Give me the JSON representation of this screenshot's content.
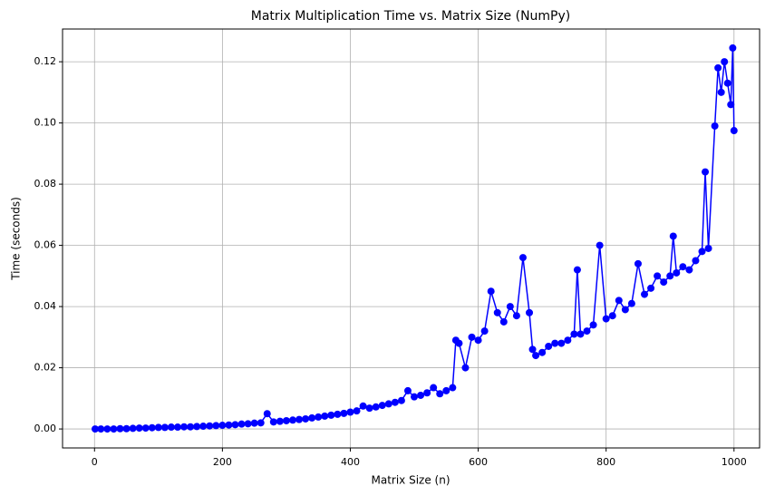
{
  "chart_data": {
    "type": "line",
    "title": "Matrix Multiplication Time vs. Matrix Size (NumPy)",
    "x_label": "Matrix Size (n)",
    "y_label": "Time (seconds)",
    "grid": true,
    "x": [
      1,
      10,
      20,
      30,
      40,
      50,
      60,
      70,
      80,
      90,
      100,
      110,
      120,
      130,
      140,
      150,
      160,
      170,
      180,
      190,
      200,
      210,
      220,
      230,
      240,
      250,
      260,
      270,
      280,
      290,
      300,
      310,
      320,
      330,
      340,
      350,
      360,
      370,
      380,
      390,
      400,
      410,
      420,
      430,
      440,
      450,
      460,
      470,
      480,
      490,
      500,
      510,
      520,
      530,
      540,
      550,
      560,
      565,
      570,
      580,
      590,
      600,
      610,
      620,
      630,
      640,
      650,
      660,
      670,
      680,
      685,
      690,
      700,
      710,
      720,
      730,
      740,
      750,
      755,
      760,
      770,
      780,
      790,
      800,
      810,
      820,
      830,
      840,
      850,
      860,
      870,
      880,
      890,
      900,
      905,
      910,
      920,
      930,
      940,
      950,
      955,
      960,
      970,
      975,
      980,
      985,
      990,
      995,
      998,
      1000
    ],
    "series": [
      {
        "name": "Time",
        "color": "#0000ff",
        "values": [
          0,
          0,
          0,
          0,
          0.0001,
          0.0001,
          0.0002,
          0.0003,
          0.0003,
          0.0004,
          0.0005,
          0.0005,
          0.0006,
          0.0006,
          0.0007,
          0.0007,
          0.0008,
          0.0009,
          0.001,
          0.0011,
          0.0012,
          0.0013,
          0.0014,
          0.0016,
          0.0017,
          0.0019,
          0.002,
          0.005,
          0.0023,
          0.0025,
          0.0027,
          0.0029,
          0.0031,
          0.0033,
          0.0036,
          0.0039,
          0.0042,
          0.0045,
          0.0048,
          0.0051,
          0.0055,
          0.0059,
          0.0075,
          0.0068,
          0.0072,
          0.0077,
          0.0082,
          0.0087,
          0.0093,
          0.0125,
          0.0105,
          0.011,
          0.0118,
          0.0135,
          0.0115,
          0.0125,
          0.0135,
          0.029,
          0.028,
          0.02,
          0.03,
          0.029,
          0.032,
          0.045,
          0.038,
          0.035,
          0.04,
          0.037,
          0.056,
          0.038,
          0.026,
          0.024,
          0.025,
          0.027,
          0.028,
          0.028,
          0.029,
          0.031,
          0.052,
          0.031,
          0.032,
          0.034,
          0.06,
          0.036,
          0.037,
          0.042,
          0.039,
          0.041,
          0.054,
          0.044,
          0.046,
          0.05,
          0.048,
          0.05,
          0.063,
          0.051,
          0.053,
          0.052,
          0.055,
          0.058,
          0.084,
          0.059,
          0.099,
          0.118,
          0.11,
          0.12,
          0.113,
          0.106,
          0.1245,
          0.0975
        ]
      }
    ],
    "xlim": [
      -50,
      1040
    ],
    "ylim": [
      -0.0062,
      0.1307
    ],
    "xticks": [
      0,
      200,
      400,
      600,
      800,
      1000
    ],
    "yticks": [
      {
        "value": 0,
        "label": "0.00"
      },
      {
        "value": 0.02,
        "label": "0.02"
      },
      {
        "value": 0.04,
        "label": "0.04"
      },
      {
        "value": 0.06,
        "label": "0.06"
      },
      {
        "value": 0.08,
        "label": "0.08"
      },
      {
        "value": 0.1,
        "label": "0.10"
      },
      {
        "value": 0.12,
        "label": "0.12"
      }
    ]
  }
}
